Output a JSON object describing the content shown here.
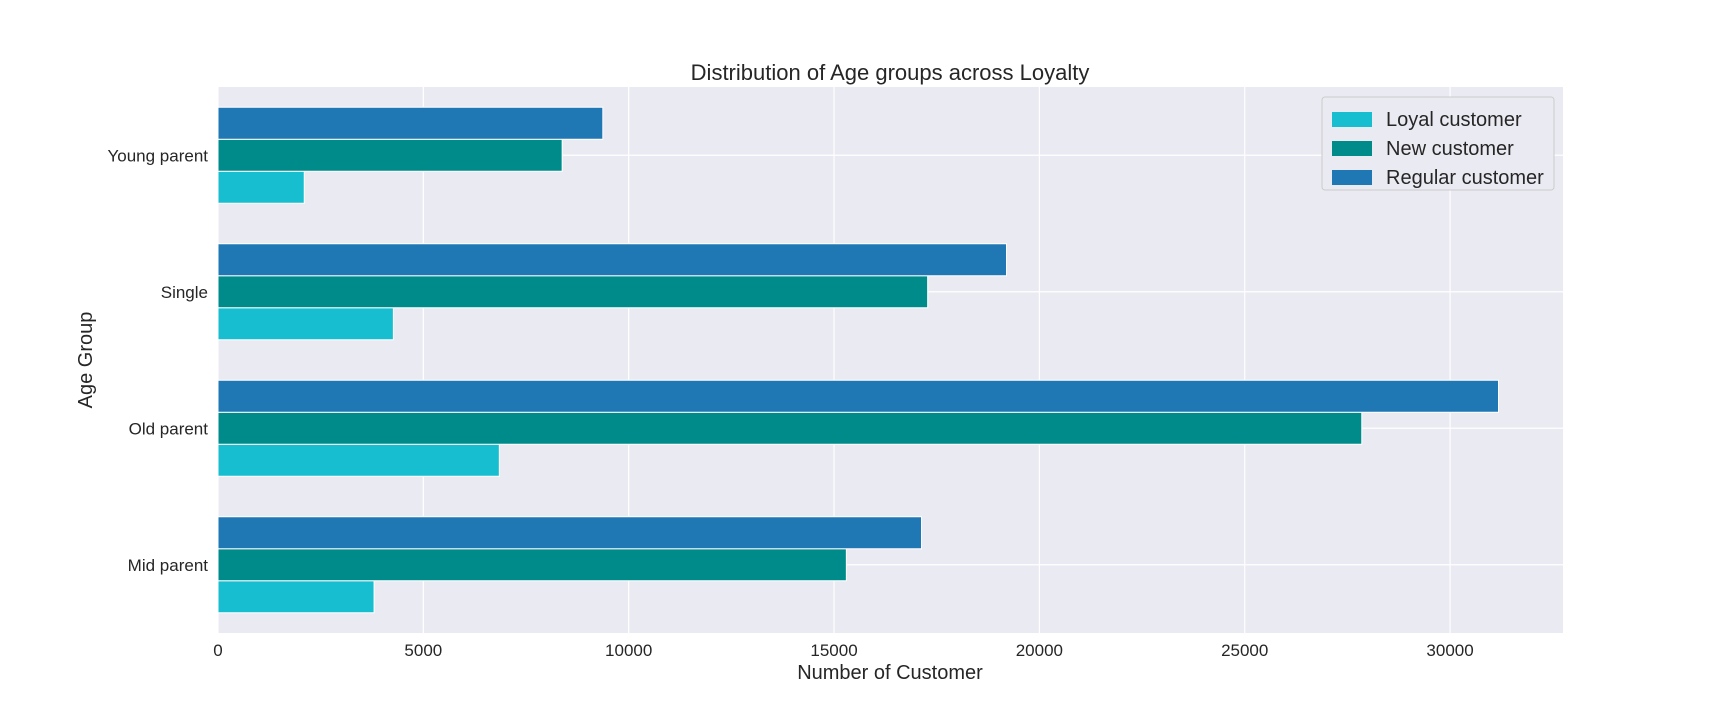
{
  "chart_data": {
    "type": "bar",
    "orientation": "horizontal",
    "title": "Distribution of Age groups across Loyalty",
    "xlabel": "Number of Customer",
    "ylabel": "Age Group",
    "categories": [
      "Mid parent",
      "Old parent",
      "Single",
      "Young parent"
    ],
    "series": [
      {
        "name": "Loyal customer",
        "color": "#17becf",
        "values": [
          3800,
          6850,
          4270,
          2100
        ]
      },
      {
        "name": "New customer",
        "color": "#008b8b",
        "values": [
          15300,
          27850,
          17280,
          8380
        ]
      },
      {
        "name": "Regular customer",
        "color": "#1f77b4",
        "values": [
          17130,
          31180,
          19200,
          9370
        ]
      }
    ],
    "xlim": [
      0,
      32750
    ],
    "xticks": [
      0,
      5000,
      10000,
      15000,
      20000,
      25000,
      30000
    ],
    "grid": true,
    "legend_position": "top-right",
    "background": "#eaeaf2"
  }
}
